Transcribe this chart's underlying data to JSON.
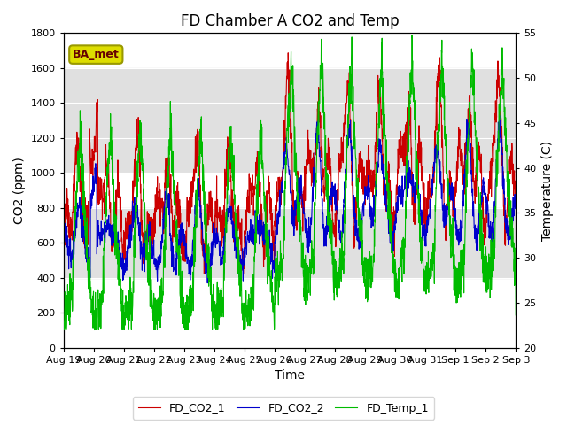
{
  "title": "FD Chamber A CO2 and Temp",
  "xlabel": "Time",
  "ylabel_left": "CO2 (ppm)",
  "ylabel_right": "Temperature (C)",
  "ylim_left": [
    0,
    1800
  ],
  "ylim_right": [
    20,
    55
  ],
  "yticks_left": [
    0,
    200,
    400,
    600,
    800,
    1000,
    1200,
    1400,
    1600,
    1800
  ],
  "yticks_right": [
    20,
    25,
    30,
    35,
    40,
    45,
    50,
    55
  ],
  "legend_labels": [
    "FD_CO2_1",
    "FD_CO2_2",
    "FD_Temp_1"
  ],
  "line_colors": [
    "#cc0000",
    "#0000cc",
    "#00bb00"
  ],
  "badge_text": "BA_met",
  "badge_bg": "#dddd00",
  "badge_border": "#999900",
  "band1": [
    400,
    800
  ],
  "band2": [
    1000,
    1600
  ],
  "band_color": "#e0e0e0",
  "title_fontsize": 12,
  "axis_fontsize": 10,
  "tick_fontsize": 8,
  "legend_fontsize": 9,
  "tick_labels": [
    "Aug 19",
    "Aug 20",
    "Aug 21",
    "Aug 22",
    "Aug 23",
    "Aug 24",
    "Aug 25",
    "Aug 26",
    "Aug 27",
    "Aug 28",
    "Aug 29",
    "Aug 30",
    "Aug 31",
    "Sep 1",
    "Sep 2",
    "Sep 3"
  ],
  "n_days": 15
}
